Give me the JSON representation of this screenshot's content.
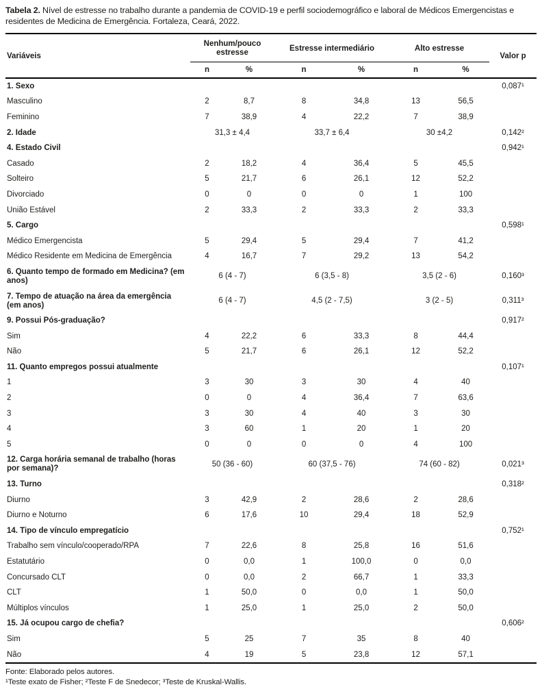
{
  "title": {
    "label": "Tabela 2.",
    "text": " Nível de estresse no trabalho durante a pandemia de COVID-19 e perfil sociodemográfico e laboral de Médicos Emergencistas e residentes de Medicina de Emergência. Fortaleza, Ceará, 2022."
  },
  "header": {
    "variables": "Variáveis",
    "groups": [
      {
        "label": "Nenhum/pouco estresse"
      },
      {
        "label": "Estresse intermediário"
      },
      {
        "label": "Alto estresse"
      }
    ],
    "sub": [
      "n",
      "%",
      "n",
      "%",
      "n",
      "%"
    ],
    "p_label": "Valor p"
  },
  "rows": [
    {
      "label": "1. Sexo",
      "bold": true,
      "cells": [
        "",
        "",
        "",
        "",
        "",
        ""
      ],
      "p": "0,087¹"
    },
    {
      "label": "Masculino",
      "bold": false,
      "cells": [
        "2",
        "8,7",
        "8",
        "34,8",
        "13",
        "56,5"
      ],
      "p": ""
    },
    {
      "label": "Feminino",
      "bold": false,
      "cells": [
        "7",
        "38,9",
        "4",
        "22,2",
        "7",
        "38,9"
      ],
      "p": ""
    },
    {
      "label": "2. Idade",
      "bold": true,
      "span": [
        "31,3 ± 4,4",
        "33,7 ± 6,4",
        "30 ±4,2"
      ],
      "p": "0,142²"
    },
    {
      "label": "4. Estado Civil",
      "bold": true,
      "cells": [
        "",
        "",
        "",
        "",
        "",
        ""
      ],
      "p": "0,942¹"
    },
    {
      "label": "Casado",
      "bold": false,
      "cells": [
        "2",
        "18,2",
        "4",
        "36,4",
        "5",
        "45,5"
      ],
      "p": ""
    },
    {
      "label": "Solteiro",
      "bold": false,
      "cells": [
        "5",
        "21,7",
        "6",
        "26,1",
        "12",
        "52,2"
      ],
      "p": ""
    },
    {
      "label": "Divorciado",
      "bold": false,
      "cells": [
        "0",
        "0",
        "0",
        "0",
        "1",
        "100"
      ],
      "p": ""
    },
    {
      "label": "União Estável",
      "bold": false,
      "cells": [
        "2",
        "33,3",
        "2",
        "33,3",
        "2",
        "33,3"
      ],
      "p": ""
    },
    {
      "label": "5. Cargo",
      "bold": true,
      "cells": [
        "",
        "",
        "",
        "",
        "",
        ""
      ],
      "p": "0,598¹"
    },
    {
      "label": "Médico Emergencista",
      "bold": false,
      "cells": [
        "5",
        "29,4",
        "5",
        "29,4",
        "7",
        "41,2"
      ],
      "p": ""
    },
    {
      "label": "Médico Residente em Medicina de Emergência",
      "bold": false,
      "cells": [
        "4",
        "16,7",
        "7",
        "29,2",
        "13",
        "54,2"
      ],
      "p": ""
    },
    {
      "label": "6. Quanto tempo de formado em Medicina? (em anos)",
      "bold": true,
      "span": [
        "6 (4 - 7)",
        "6 (3,5 - 8)",
        "3,5 (2 - 6)"
      ],
      "p": "0,160³"
    },
    {
      "label": "7. Tempo de atuação na área da emergência (em anos)",
      "bold": true,
      "span": [
        "6 (4 - 7)",
        "4,5 (2 - 7,5)",
        "3 (2 - 5)"
      ],
      "p": "0,311³"
    },
    {
      "label": "9. Possui Pós-graduação?",
      "bold": true,
      "cells": [
        "",
        "",
        "",
        "",
        "",
        ""
      ],
      "p": "0,917²"
    },
    {
      "label": "Sim",
      "bold": false,
      "cells": [
        "4",
        "22,2",
        "6",
        "33,3",
        "8",
        "44,4"
      ],
      "p": ""
    },
    {
      "label": "Não",
      "bold": false,
      "cells": [
        "5",
        "21,7",
        "6",
        "26,1",
        "12",
        "52,2"
      ],
      "p": ""
    },
    {
      "label": "11. Quanto empregos possui atualmente",
      "bold": true,
      "cells": [
        "",
        "",
        "",
        "",
        "",
        ""
      ],
      "p": "0,107¹"
    },
    {
      "label": "1",
      "bold": false,
      "cells": [
        "3",
        "30",
        "3",
        "30",
        "4",
        "40"
      ],
      "p": ""
    },
    {
      "label": "2",
      "bold": false,
      "cells": [
        "0",
        "0",
        "4",
        "36,4",
        "7",
        "63,6"
      ],
      "p": ""
    },
    {
      "label": "3",
      "bold": false,
      "cells": [
        "3",
        "30",
        "4",
        "40",
        "3",
        "30"
      ],
      "p": ""
    },
    {
      "label": "4",
      "bold": false,
      "cells": [
        "3",
        "60",
        "1",
        "20",
        "1",
        "20"
      ],
      "p": ""
    },
    {
      "label": "5",
      "bold": false,
      "cells": [
        "0",
        "0",
        "0",
        "0",
        "4",
        "100"
      ],
      "p": ""
    },
    {
      "label": "12. Carga horária semanal de trabalho (horas por semana)?",
      "bold": true,
      "span": [
        "50 (36 - 60)",
        "60 (37,5 - 76)",
        "74 (60 - 82)"
      ],
      "p": "0,021³"
    },
    {
      "label": "13. Turno",
      "bold": true,
      "cells": [
        "",
        "",
        "",
        "",
        "",
        ""
      ],
      "p": "0,318²"
    },
    {
      "label": "Diurno",
      "bold": false,
      "cells": [
        "3",
        "42,9",
        "2",
        "28,6",
        "2",
        "28,6"
      ],
      "p": ""
    },
    {
      "label": "Diurno e Noturno",
      "bold": false,
      "cells": [
        "6",
        "17,6",
        "10",
        "29,4",
        "18",
        "52,9"
      ],
      "p": ""
    },
    {
      "label": "14. Tipo de vínculo empregatício",
      "bold": true,
      "cells": [
        "",
        "",
        "",
        "",
        "",
        ""
      ],
      "p": "0,752¹"
    },
    {
      "label": "Trabalho sem vínculo/cooperado/RPA",
      "bold": false,
      "cells": [
        "7",
        "22,6",
        "8",
        "25,8",
        "16",
        "51,6"
      ],
      "p": ""
    },
    {
      "label": "Estatutário",
      "bold": false,
      "cells": [
        "0",
        "0,0",
        "1",
        "100,0",
        "0",
        "0,0"
      ],
      "p": ""
    },
    {
      "label": "Concursado CLT",
      "bold": false,
      "cells": [
        "0",
        "0,0",
        "2",
        "66,7",
        "1",
        "33,3"
      ],
      "p": ""
    },
    {
      "label": "CLT",
      "bold": false,
      "cells": [
        "1",
        "50,0",
        "0",
        "0,0",
        "1",
        "50,0"
      ],
      "p": ""
    },
    {
      "label": "Múltiplos vínculos",
      "bold": false,
      "cells": [
        "1",
        "25,0",
        "1",
        "25,0",
        "2",
        "50,0"
      ],
      "p": ""
    },
    {
      "label": "15. Já ocupou cargo de chefia?",
      "bold": true,
      "cells": [
        "",
        "",
        "",
        "",
        "",
        ""
      ],
      "p": "0,606²"
    },
    {
      "label": "Sim",
      "bold": false,
      "cells": [
        "5",
        "25",
        "7",
        "35",
        "8",
        "40"
      ],
      "p": ""
    },
    {
      "label": "Não",
      "bold": false,
      "cells": [
        "4",
        "19",
        "5",
        "23,8",
        "12",
        "57,1"
      ],
      "p": ""
    }
  ],
  "footer": {
    "source": "Fonte: Elaborado pelos autores.",
    "tests": "¹Teste exato de Fisher; ²Teste F de Snedecor; ³Teste de Kruskal-Wallis."
  }
}
